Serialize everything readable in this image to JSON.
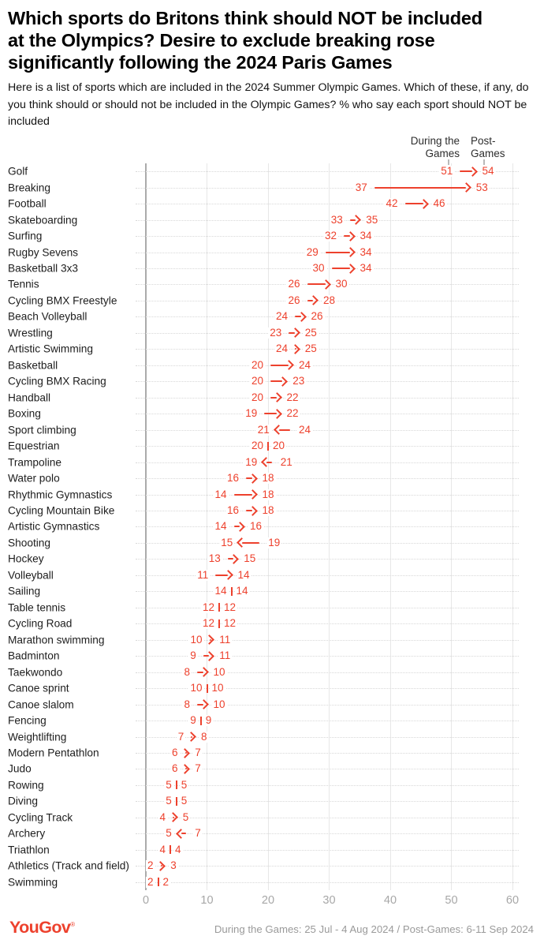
{
  "header": {
    "title": "Which sports do Britons think should NOT be included\nat the Olympics? Desire to exclude breaking rose\nsignificantly following the 2024 Paris Games",
    "subtitle": "Here is a list of sports which are included in the 2024 Summer Olympic Games. Which of these, if any, do\nyou think should or should not be included in the Olympic Games? % who say each sport should NOT be\nincluded"
  },
  "chart_data": {
    "type": "arrow-dumbbell",
    "series_labels": {
      "during": "During the\nGames",
      "post": "Post-\nGames"
    },
    "x_axis": {
      "min": 0,
      "max": 60,
      "ticks": [
        0,
        10,
        20,
        30,
        40,
        50,
        60
      ],
      "grid": true
    },
    "rows": [
      {
        "label": "Golf",
        "during": 51,
        "post": 54
      },
      {
        "label": "Breaking",
        "during": 37,
        "post": 53
      },
      {
        "label": "Football",
        "during": 42,
        "post": 46
      },
      {
        "label": "Skateboarding",
        "during": 33,
        "post": 35
      },
      {
        "label": "Surfing",
        "during": 32,
        "post": 34
      },
      {
        "label": "Rugby Sevens",
        "during": 29,
        "post": 34
      },
      {
        "label": "Basketball 3x3",
        "during": 30,
        "post": 34
      },
      {
        "label": "Tennis",
        "during": 26,
        "post": 30
      },
      {
        "label": "Cycling BMX Freestyle",
        "during": 26,
        "post": 28
      },
      {
        "label": "Beach Volleyball",
        "during": 24,
        "post": 26
      },
      {
        "label": "Wrestling",
        "during": 23,
        "post": 25
      },
      {
        "label": "Artistic Swimming",
        "during": 24,
        "post": 25
      },
      {
        "label": "Basketball",
        "during": 20,
        "post": 24
      },
      {
        "label": "Cycling BMX Racing",
        "during": 20,
        "post": 23
      },
      {
        "label": "Handball",
        "during": 20,
        "post": 22
      },
      {
        "label": "Boxing",
        "during": 19,
        "post": 22
      },
      {
        "label": "Sport climbing",
        "during": 24,
        "post": 21
      },
      {
        "label": "Equestrian",
        "during": 20,
        "post": 20
      },
      {
        "label": "Trampoline",
        "during": 21,
        "post": 19
      },
      {
        "label": "Water polo",
        "during": 16,
        "post": 18
      },
      {
        "label": "Rhythmic Gymnastics",
        "during": 14,
        "post": 18
      },
      {
        "label": "Cycling Mountain Bike",
        "during": 16,
        "post": 18
      },
      {
        "label": "Artistic Gymnastics",
        "during": 14,
        "post": 16
      },
      {
        "label": "Shooting",
        "during": 19,
        "post": 15
      },
      {
        "label": "Hockey",
        "during": 13,
        "post": 15
      },
      {
        "label": "Volleyball",
        "during": 11,
        "post": 14
      },
      {
        "label": "Sailing",
        "during": 14,
        "post": 14
      },
      {
        "label": "Table tennis",
        "during": 12,
        "post": 12
      },
      {
        "label": "Cycling Road",
        "during": 12,
        "post": 12
      },
      {
        "label": "Marathon swimming",
        "during": 10,
        "post": 11
      },
      {
        "label": "Badminton",
        "during": 9,
        "post": 11
      },
      {
        "label": "Taekwondo",
        "during": 8,
        "post": 10
      },
      {
        "label": "Canoe sprint",
        "during": 10,
        "post": 10
      },
      {
        "label": "Canoe slalom",
        "during": 8,
        "post": 10
      },
      {
        "label": "Fencing",
        "during": 9,
        "post": 9
      },
      {
        "label": "Weightlifting",
        "during": 7,
        "post": 8
      },
      {
        "label": "Modern Pentathlon",
        "during": 6,
        "post": 7
      },
      {
        "label": "Judo",
        "during": 6,
        "post": 7
      },
      {
        "label": "Rowing",
        "during": 5,
        "post": 5
      },
      {
        "label": "Diving",
        "during": 5,
        "post": 5
      },
      {
        "label": "Cycling Track",
        "during": 4,
        "post": 5
      },
      {
        "label": "Archery",
        "during": 7,
        "post": 5
      },
      {
        "label": "Triathlon",
        "during": 4,
        "post": 4
      },
      {
        "label": "Athletics (Track and field)",
        "during": 2,
        "post": 3
      },
      {
        "label": "Swimming",
        "during": 2,
        "post": 2
      }
    ]
  },
  "footer": {
    "logo": "YouGov",
    "logo_mark": "®",
    "source": "During the Games: 25 Jul - 4 Aug 2024 / Post-Games: 6-11 Sep 2024"
  },
  "colors": {
    "accent": "#ED412D",
    "grid": "#e7e7e7",
    "axis_line": "#ababab",
    "dotted_line": "#d8d8d8",
    "tick_label": "#a7a7a7",
    "muted_text": "#9a9a9a"
  }
}
